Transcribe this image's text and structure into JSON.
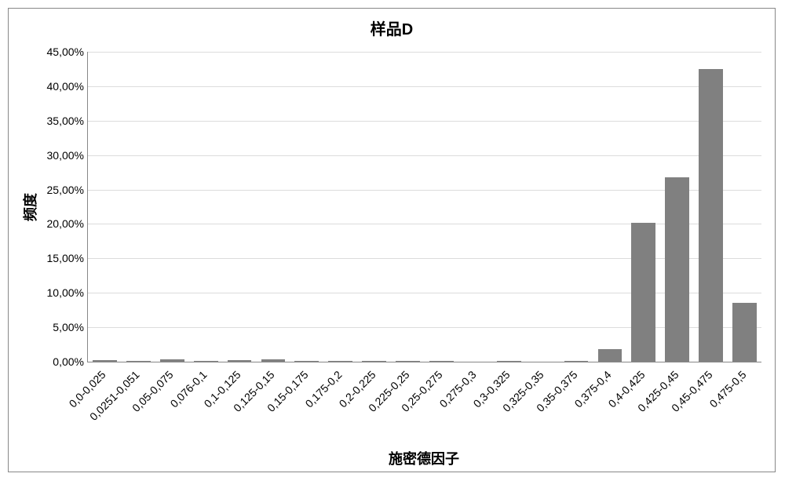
{
  "chart": {
    "type": "bar",
    "title": "样品D",
    "title_fontsize": 20,
    "xlabel": "施密德因子",
    "ylabel": "频度",
    "axis_label_fontsize": 18,
    "tick_fontsize": 14,
    "background_color": "#ffffff",
    "grid_color": "#dcdcdc",
    "axis_color": "#888888",
    "bar_color": "#808080",
    "bar_width_ratio": 0.72,
    "ylim": [
      0,
      45
    ],
    "ytick_step": 5,
    "ytick_labels": [
      "0,00%",
      "5,00%",
      "10,00%",
      "15,00%",
      "20,00%",
      "25,00%",
      "30,00%",
      "35,00%",
      "40,00%",
      "45,00%"
    ],
    "categories": [
      "0,0-0,025",
      "0,0251-0,051",
      "0,05-0,075",
      "0,076-0,1",
      "0,1-0,125",
      "0,125-0,15",
      "0,15-0,175",
      "0,175-0,2",
      "0,2-0,225",
      "0,225-0,25",
      "0,25-0,275",
      "0,275-0,3",
      "0,3-0,325",
      "0,325-0,35",
      "0,35-0,375",
      "0,375-0,4",
      "0,4-0,425",
      "0,425-0,45",
      "0,45-0,475",
      "0,475-0,5"
    ],
    "values": [
      0.2,
      0.1,
      0.3,
      0.1,
      0.2,
      0.4,
      0.1,
      0.1,
      0.1,
      0.1,
      0.1,
      0.0,
      0.1,
      0.0,
      0.1,
      1.8,
      20.2,
      26.8,
      42.5,
      8.5
    ]
  }
}
